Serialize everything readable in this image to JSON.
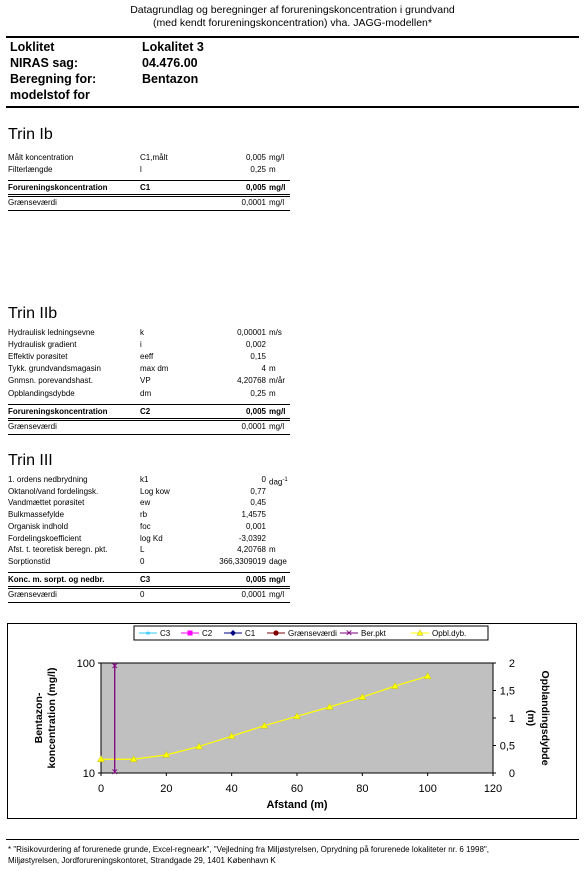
{
  "header": {
    "line1": "Datagrundlag og beregninger af forureningskoncentration i grundvand",
    "line2": "(med kendt forureningskoncentration) vha. JAGG-modellen*"
  },
  "info": {
    "loklitet_label": "Loklitet",
    "loklitet_value": "Lokalitet 3",
    "niras_label": "NIRAS sag:",
    "niras_value": "04.476.00",
    "beregning_label1": "Beregning for:",
    "beregning_label2": "modelstof for",
    "beregning_value": "Bentazon"
  },
  "trin1": {
    "title": "Trin Ib",
    "rows": [
      {
        "name": "Målt koncentration",
        "sym": "C1,målt",
        "val": "0,005",
        "unit": "mg/l"
      },
      {
        "name": "Filterlængde",
        "sym": "l",
        "val": "0,25",
        "unit": "m"
      }
    ],
    "total": {
      "name": "Forureningskoncentration",
      "sym": "C1",
      "val": "0,005",
      "unit": "mg/l"
    },
    "limit": {
      "name": "Grænseværdi",
      "val": "0,0001",
      "unit": "mg/l"
    }
  },
  "trin2": {
    "title": "Trin IIb",
    "rows": [
      {
        "name": "Hydraulisk ledningsevne",
        "sym": "k",
        "val": "0,00001",
        "unit": "m/s"
      },
      {
        "name": "Hydraulisk gradient",
        "sym": "i",
        "val": "0,002",
        "unit": ""
      },
      {
        "name": "Effektiv porøsitet",
        "sym": "eeff",
        "val": "0,15",
        "unit": ""
      },
      {
        "name": "Tykk. grundvandsmagasin",
        "sym": "max dm",
        "val": "4",
        "unit": "m"
      },
      {
        "name": "Gnmsn. porevandshast.",
        "sym": "VP",
        "val": "4,20768",
        "unit": "m/år"
      },
      {
        "name": "Opblandingsdybde",
        "sym": "dm",
        "val": "0,25",
        "unit": "m"
      }
    ],
    "total": {
      "name": "Forureningskoncentration",
      "sym": "C2",
      "val": "0,005",
      "unit": "mg/l"
    },
    "limit": {
      "name": "Grænseværdi",
      "val": "0,0001",
      "unit": "mg/l"
    }
  },
  "trin3": {
    "title": "Trin III",
    "rows": [
      {
        "name": "1. ordens nedbrydning",
        "sym": "k1",
        "val": "0",
        "unit": "dag",
        "sup": "-1"
      },
      {
        "name": "Oktanol/vand fordelingsk.",
        "sym": "Log kow",
        "val": "0,77",
        "unit": ""
      },
      {
        "name": "Vandmættet porøsitet",
        "sym": "ew",
        "val": "0,45",
        "unit": ""
      },
      {
        "name": "Bulkmassefylde",
        "sym": "rb",
        "val": "1,4575",
        "unit": ""
      },
      {
        "name": "Organisk indhold",
        "sym": "foc",
        "val": "0,001",
        "unit": ""
      },
      {
        "name": "Fordelingskoefficient",
        "sym": "log Kd",
        "val": "-3,0392",
        "unit": ""
      },
      {
        "name": "Afst. t. teoretisk beregn. pkt.",
        "sym": "L",
        "val": "4,20768",
        "unit": "m"
      },
      {
        "name": "Sorptionstid",
        "sym": "0",
        "val": "366,3309019",
        "unit": "dage"
      }
    ],
    "total": {
      "name": "Konc. m. sorpt. og nedbr.",
      "sym": "C3",
      "val": "0,005",
      "unit": "mg/l"
    },
    "limit": {
      "name": "Grænseværdi",
      "sym": "0",
      "val": "0,0001",
      "unit": "mg/l"
    }
  },
  "chart_data": {
    "type": "line",
    "legend": [
      "C3",
      "C2",
      "C1",
      "Grænseværdi",
      "Ber.pkt",
      "Opbl.dyb."
    ],
    "legend_colors": [
      "#33ccff",
      "#ff00ff",
      "#000080",
      "#800000",
      "#800080",
      "#ffff00"
    ],
    "legend_placement": "top",
    "xlabel": "Afstand (m)",
    "ylabel_left_1": "Bentazon-",
    "ylabel_left_2": "koncentration (mg/l)",
    "ylabel_right_1": "Opblandingsdybde",
    "ylabel_right_2": "(m)",
    "x_ticks": [
      "0",
      "20",
      "40",
      "60",
      "80",
      "100",
      "120"
    ],
    "xlim": [
      0,
      120
    ],
    "y_left_ticks": [
      "100",
      "10"
    ],
    "y_left_scale": "log",
    "y_right_ticks": [
      "2",
      "1,5",
      "1",
      "0,5",
      "0"
    ],
    "y_right_lim": [
      0,
      2
    ],
    "plot_bg": "#c0c0c0",
    "series": [
      {
        "name": "Opbl.dyb.",
        "axis": "right",
        "color": "#ffff00",
        "x": [
          0,
          10,
          20,
          30,
          40,
          50,
          60,
          70,
          80,
          90,
          100
        ],
        "y": [
          0.25,
          0.25,
          0.33,
          0.48,
          0.67,
          0.86,
          1.03,
          1.2,
          1.38,
          1.58,
          1.76
        ]
      },
      {
        "name": "Ber.pkt",
        "axis": "left",
        "color": "#800080",
        "x": [
          4.2,
          4.2
        ],
        "y": [
          10,
          100
        ]
      }
    ]
  },
  "footnote": {
    "line1": "* \"Risikovurdering af forurenede grunde, Excel-regneark\", \"Vejledning fra Miljøstyrelsen, Oprydning på forurenede lokaliteter nr. 6 1998\",",
    "line2": "Miljøstyrelsen, Jordforureningskontoret, Strandgade 29, 1401 København K"
  }
}
